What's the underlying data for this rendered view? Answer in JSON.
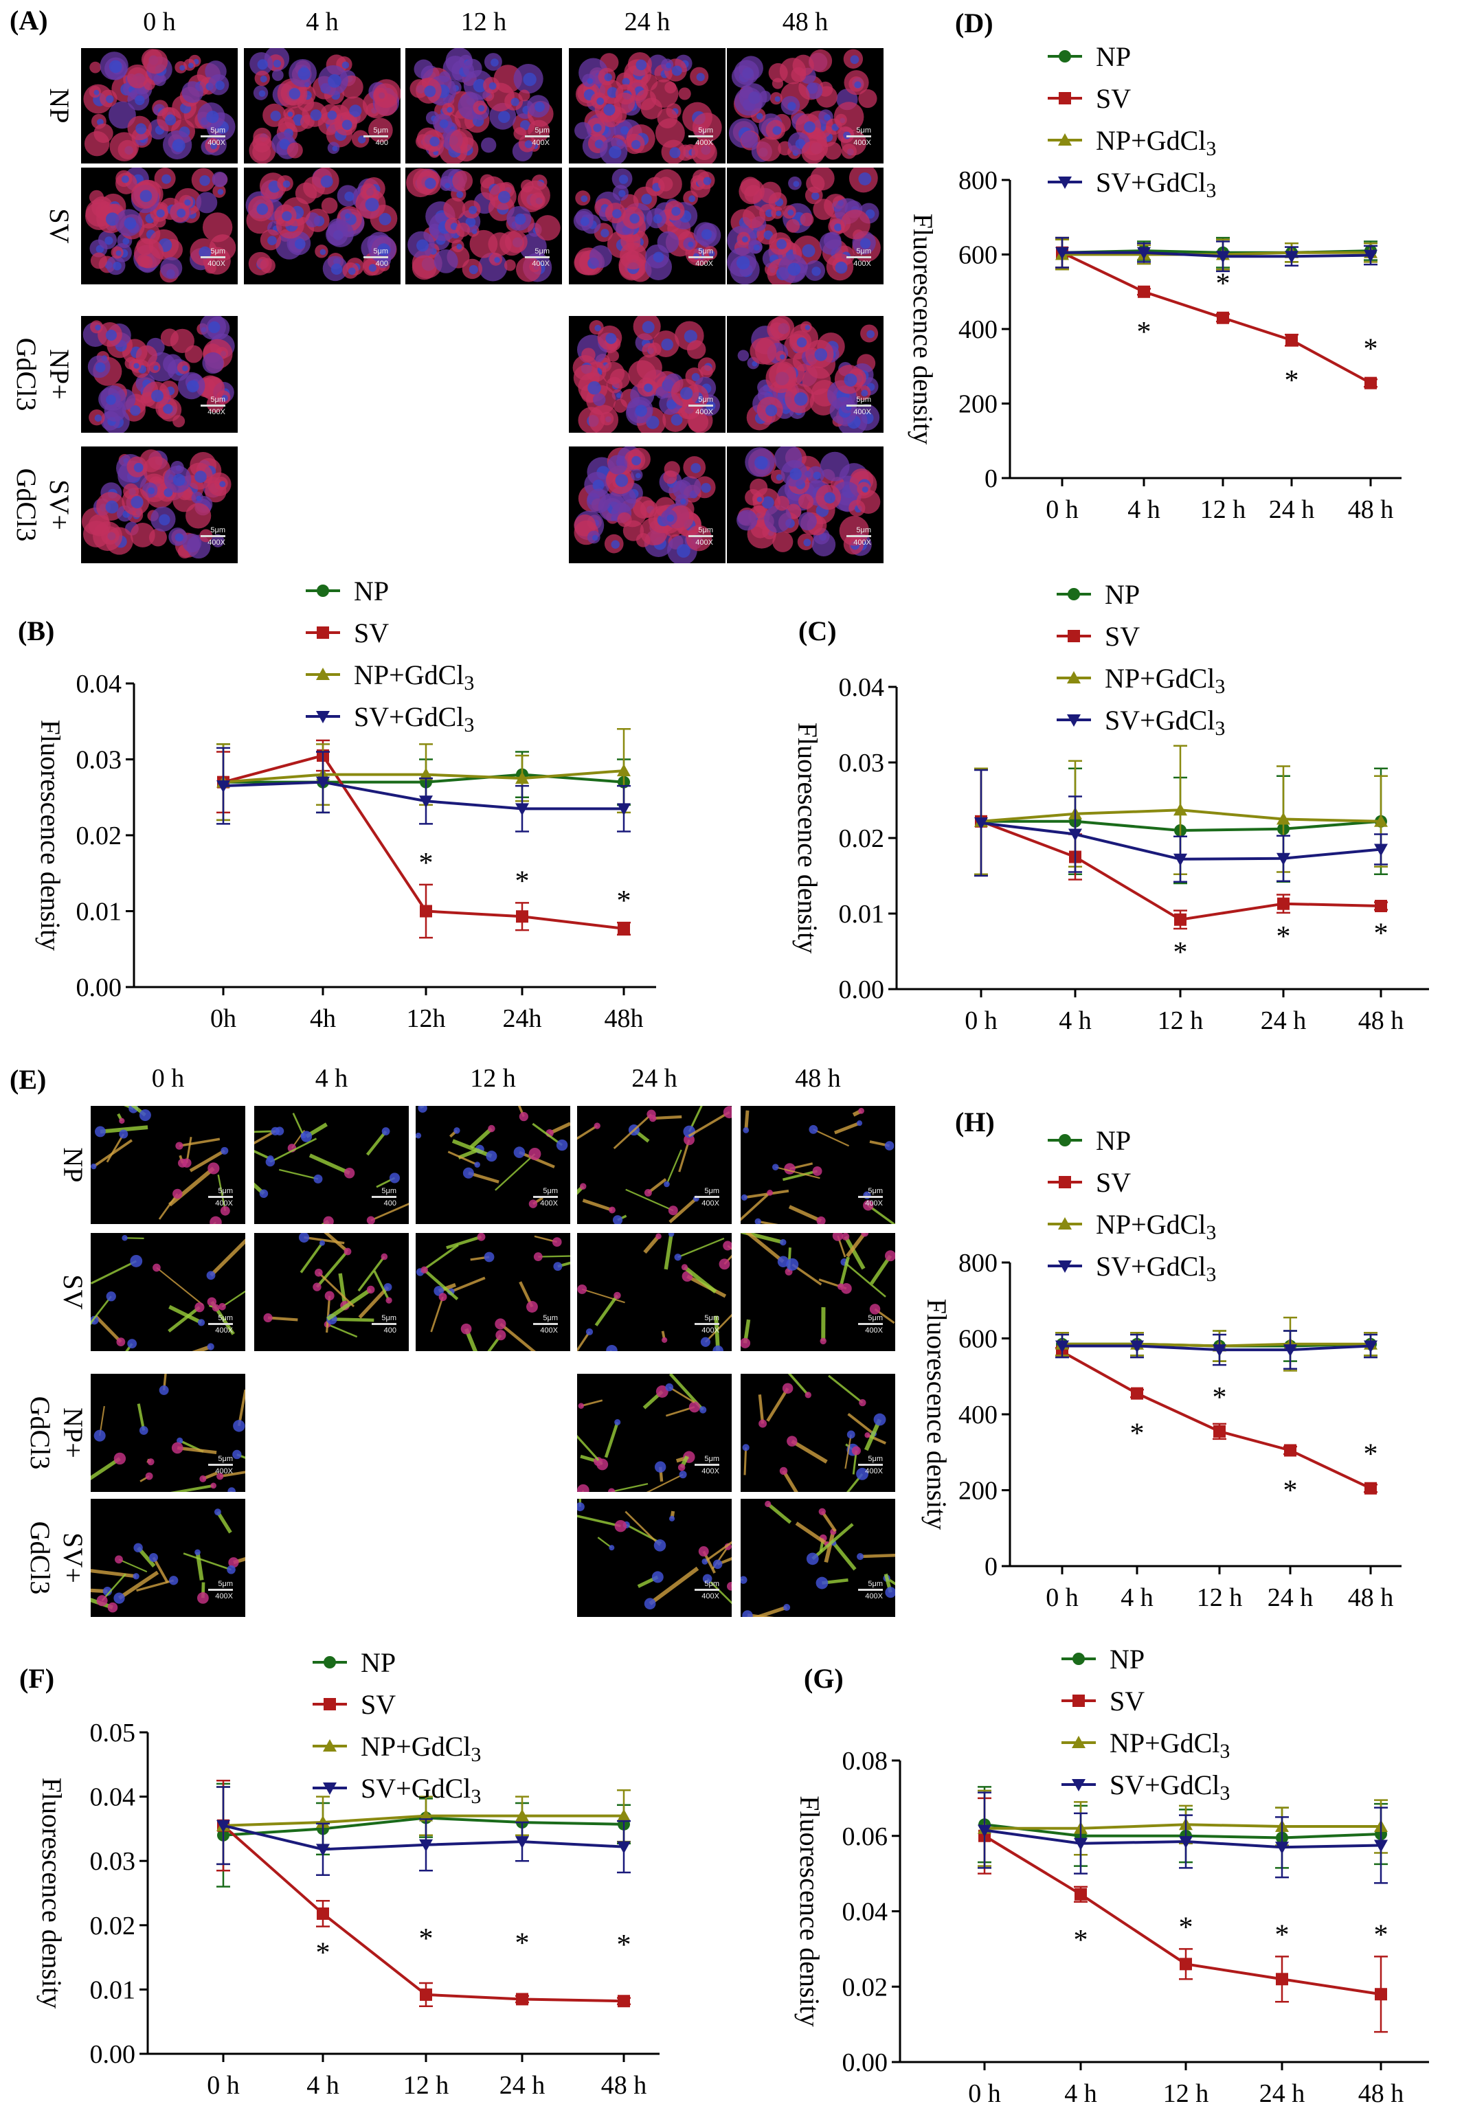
{
  "panel_labels": {
    "A": "(A)",
    "B": "(B)",
    "C": "(C)",
    "D": "(D)",
    "E": "(E)",
    "F": "(F)",
    "G": "(G)",
    "H": "(H)"
  },
  "colors": {
    "NP": "#1a6b1a",
    "SV": "#b01a1a",
    "NP+GdCl3": "#8a8a10",
    "SV+GdCl3": "#1a1a7a"
  },
  "image_panels": [
    {
      "id": "A",
      "columns": [
        "0 h",
        "4 h",
        "12 h",
        "24 h",
        "48 h"
      ],
      "rows": [
        "NP",
        "SV",
        "NP+\nGdCl3",
        "SV+\nGdCl3"
      ],
      "style": "red-blue",
      "tiles": [
        [
          {
            "s1": "5μm",
            "s2": "400X"
          },
          {
            "s1": "5μm",
            "s2": "400"
          },
          {
            "s1": "5μm",
            "s2": "400X"
          },
          {
            "s1": "5μm",
            "s2": "400X"
          },
          {
            "s1": "5μm",
            "s2": "400X"
          }
        ],
        [
          {
            "s1": "5μm",
            "s2": "400X"
          },
          {
            "s1": "5μm",
            "s2": "400"
          },
          {
            "s1": "5μm",
            "s2": "400X"
          },
          {
            "s1": "5μm",
            "s2": "400X"
          },
          {
            "s1": "5μm",
            "s2": "400X"
          }
        ],
        [
          {
            "s1": "5μm",
            "s2": "400X"
          },
          null,
          null,
          {
            "s1": "5μm",
            "s2": "400X"
          },
          {
            "s1": "5μm",
            "s2": "400X"
          }
        ],
        [
          {
            "s1": "5μm",
            "s2": "400X"
          },
          null,
          null,
          {
            "s1": "5μm",
            "s2": "400X"
          },
          {
            "s1": "5μm",
            "s2": "400X"
          }
        ]
      ]
    },
    {
      "id": "E",
      "columns": [
        "0 h",
        "4 h",
        "12 h",
        "24 h",
        "48 h"
      ],
      "rows": [
        "NP",
        "SV",
        "NP+\nGdCl3",
        "SV+\nGdCl3"
      ],
      "style": "green-red",
      "tiles": [
        [
          {
            "s1": "5μm",
            "s2": "400X"
          },
          {
            "s1": "5μm",
            "s2": "400"
          },
          {
            "s1": "5μm",
            "s2": "400X"
          },
          {
            "s1": "5μm",
            "s2": "400X"
          },
          {
            "s1": "5μm",
            "s2": "400X"
          }
        ],
        [
          {
            "s1": "5μm",
            "s2": "400X"
          },
          {
            "s1": "5μm",
            "s2": "400"
          },
          {
            "s1": "5μm",
            "s2": "400X"
          },
          {
            "s1": "5μm",
            "s2": "400X"
          },
          {
            "s1": "5μm",
            "s2": "400X"
          }
        ],
        [
          {
            "s1": "5μm",
            "s2": "400X"
          },
          null,
          null,
          {
            "s1": "5μm",
            "s2": "400X"
          },
          {
            "s1": "5μm",
            "s2": "400X"
          }
        ],
        [
          {
            "s1": "5μm",
            "s2": "400X"
          },
          null,
          null,
          {
            "s1": "5μm",
            "s2": "400X"
          },
          {
            "s1": "5μm",
            "s2": "400X"
          }
        ]
      ]
    }
  ],
  "chart_data": [
    {
      "id": "B",
      "type": "line",
      "categories": [
        "0h",
        "4h",
        "12h",
        "24h",
        "48h"
      ],
      "ylabel": "Fluorescence density",
      "ylim": [
        0,
        0.04
      ],
      "yticks": [
        "0.00",
        "0.01",
        "0.02",
        "0.03",
        "0.04"
      ],
      "legend": "top-center",
      "series": [
        {
          "name": "NP",
          "values": [
            0.027,
            0.027,
            0.027,
            0.028,
            0.027
          ],
          "err": [
            0.005,
            0.004,
            0.003,
            0.003,
            0.003
          ]
        },
        {
          "name": "SV",
          "values": [
            0.027,
            0.0305,
            0.01,
            0.0093,
            0.0077
          ],
          "err": [
            0.004,
            0.002,
            0.0035,
            0.0018,
            0.0008
          ]
        },
        {
          "name": "NP+GdCl3",
          "values": [
            0.027,
            0.028,
            0.028,
            0.0275,
            0.0285
          ],
          "err": [
            0.005,
            0.004,
            0.004,
            0.003,
            0.0055
          ]
        },
        {
          "name": "SV+GdCl3",
          "values": [
            0.0265,
            0.027,
            0.0245,
            0.0235,
            0.0235
          ],
          "err": [
            0.005,
            0.004,
            0.003,
            0.003,
            0.003
          ]
        }
      ],
      "stars": [
        null,
        null,
        "*",
        "*",
        "*"
      ],
      "star_pos": "above"
    },
    {
      "id": "C",
      "type": "line",
      "categories": [
        "0 h",
        "4 h",
        "12 h",
        "24 h",
        "48 h"
      ],
      "ylabel": "Fluorescence density",
      "ylim": [
        0,
        0.04
      ],
      "yticks": [
        "0.00",
        "0.01",
        "0.02",
        "0.03",
        "0.04"
      ],
      "legend": "top-center",
      "series": [
        {
          "name": "NP",
          "values": [
            0.0222,
            0.0222,
            0.021,
            0.0212,
            0.0222
          ],
          "err": [
            0.007,
            0.007,
            0.007,
            0.007,
            0.007
          ]
        },
        {
          "name": "SV",
          "values": [
            0.0222,
            0.0175,
            0.0092,
            0.0113,
            0.011
          ],
          "err": [
            0.007,
            0.003,
            0.0012,
            0.0012,
            0.0005
          ]
        },
        {
          "name": "NP+GdCl3",
          "values": [
            0.0222,
            0.0232,
            0.0237,
            0.0225,
            0.0222
          ],
          "err": [
            0.007,
            0.007,
            0.0085,
            0.007,
            0.006
          ]
        },
        {
          "name": "SV+GdCl3",
          "values": [
            0.022,
            0.0205,
            0.0172,
            0.0173,
            0.0185
          ],
          "err": [
            0.007,
            0.005,
            0.003,
            0.003,
            0.002
          ]
        }
      ],
      "stars": [
        null,
        null,
        "*",
        "*",
        "*"
      ],
      "star_pos": "below"
    },
    {
      "id": "D",
      "type": "line",
      "categories": [
        "0 h",
        "4 h",
        "12 h",
        "24 h",
        "48 h"
      ],
      "ylabel": "Fluorescence density",
      "ylim": [
        0,
        800
      ],
      "yticks": [
        "0",
        "200",
        "400",
        "600",
        "800"
      ],
      "legend": "top-right",
      "series": [
        {
          "name": "NP",
          "values": [
            605,
            610,
            605,
            605,
            610
          ],
          "err": [
            40,
            25,
            40,
            25,
            25
          ]
        },
        {
          "name": "SV",
          "values": [
            605,
            500,
            430,
            370,
            255
          ],
          "err": [
            40,
            8,
            10,
            15,
            10
          ]
        },
        {
          "name": "NP+GdCl3",
          "values": [
            600,
            600,
            600,
            605,
            605
          ],
          "err": [
            40,
            25,
            40,
            25,
            25
          ]
        },
        {
          "name": "SV+GdCl3",
          "values": [
            605,
            605,
            595,
            595,
            598
          ],
          "err": [
            40,
            25,
            40,
            25,
            25
          ]
        }
      ],
      "stars": [
        null,
        "*",
        "*",
        "*",
        "*"
      ],
      "star_pos": "mixed"
    },
    {
      "id": "H",
      "type": "line",
      "categories": [
        "0 h",
        "4 h",
        "12 h",
        "24 h",
        "48 h"
      ],
      "ylabel": "Fluorescence density",
      "ylim": [
        0,
        800
      ],
      "yticks": [
        "0",
        "200",
        "400",
        "600",
        "800"
      ],
      "legend": "top-right",
      "series": [
        {
          "name": "NP",
          "values": [
            585,
            585,
            580,
            580,
            585
          ],
          "err": [
            30,
            30,
            40,
            40,
            30
          ]
        },
        {
          "name": "SV",
          "values": [
            565,
            455,
            355,
            305,
            205
          ],
          "err": [
            10,
            10,
            20,
            10,
            10
          ]
        },
        {
          "name": "NP+GdCl3",
          "values": [
            585,
            585,
            580,
            585,
            585
          ],
          "err": [
            30,
            30,
            40,
            70,
            30
          ]
        },
        {
          "name": "SV+GdCl3",
          "values": [
            580,
            580,
            570,
            570,
            580
          ],
          "err": [
            30,
            30,
            40,
            50,
            30
          ]
        }
      ],
      "stars": [
        null,
        "*",
        "*",
        "*",
        "*"
      ],
      "star_pos": "mixed"
    },
    {
      "id": "F",
      "type": "line",
      "categories": [
        "0 h",
        "4 h",
        "12 h",
        "24 h",
        "48 h"
      ],
      "ylabel": "Fluorescence density",
      "ylim": [
        0,
        0.05
      ],
      "yticks": [
        "0.00",
        "0.01",
        "0.02",
        "0.03",
        "0.04",
        "0.05"
      ],
      "legend": "top-center",
      "series": [
        {
          "name": "NP",
          "values": [
            0.034,
            0.035,
            0.0367,
            0.036,
            0.0357
          ],
          "err": [
            0.008,
            0.004,
            0.003,
            0.003,
            0.003
          ]
        },
        {
          "name": "SV",
          "values": [
            0.0355,
            0.0218,
            0.0092,
            0.0085,
            0.0082
          ],
          "err": [
            0.007,
            0.002,
            0.0018,
            0.0005,
            0.0005
          ]
        },
        {
          "name": "NP+GdCl3",
          "values": [
            0.0355,
            0.036,
            0.037,
            0.037,
            0.037
          ],
          "err": [
            0.006,
            0.004,
            0.003,
            0.003,
            0.004
          ]
        },
        {
          "name": "SV+GdCl3",
          "values": [
            0.0355,
            0.0318,
            0.0325,
            0.033,
            0.0322
          ],
          "err": [
            0.006,
            0.004,
            0.004,
            0.003,
            0.004
          ]
        }
      ],
      "stars": [
        null,
        "*",
        "*",
        "*",
        "*"
      ],
      "star_pos": "mid"
    },
    {
      "id": "G",
      "type": "line",
      "categories": [
        "0 h",
        "4 h",
        "12 h",
        "24 h",
        "48 h"
      ],
      "ylabel": "Fluorescence density",
      "ylim": [
        0,
        0.08
      ],
      "yticks": [
        "0.00",
        "0.02",
        "0.04",
        "0.06",
        "0.08"
      ],
      "legend": "top-center",
      "series": [
        {
          "name": "NP",
          "values": [
            0.063,
            0.06,
            0.06,
            0.0595,
            0.0605
          ],
          "err": [
            0.01,
            0.008,
            0.007,
            0.008,
            0.008
          ]
        },
        {
          "name": "SV",
          "values": [
            0.06,
            0.0445,
            0.026,
            0.022,
            0.018
          ],
          "err": [
            0.01,
            0.002,
            0.004,
            0.006,
            0.01
          ]
        },
        {
          "name": "NP+GdCl3",
          "values": [
            0.062,
            0.062,
            0.063,
            0.0625,
            0.0625
          ],
          "err": [
            0.01,
            0.007,
            0.005,
            0.005,
            0.007
          ]
        },
        {
          "name": "SV+GdCl3",
          "values": [
            0.0615,
            0.058,
            0.0585,
            0.057,
            0.0575
          ],
          "err": [
            0.01,
            0.008,
            0.007,
            0.008,
            0.01
          ]
        }
      ],
      "stars": [
        null,
        "*",
        "*",
        "*",
        "*"
      ],
      "star_pos": "above-mid"
    }
  ]
}
